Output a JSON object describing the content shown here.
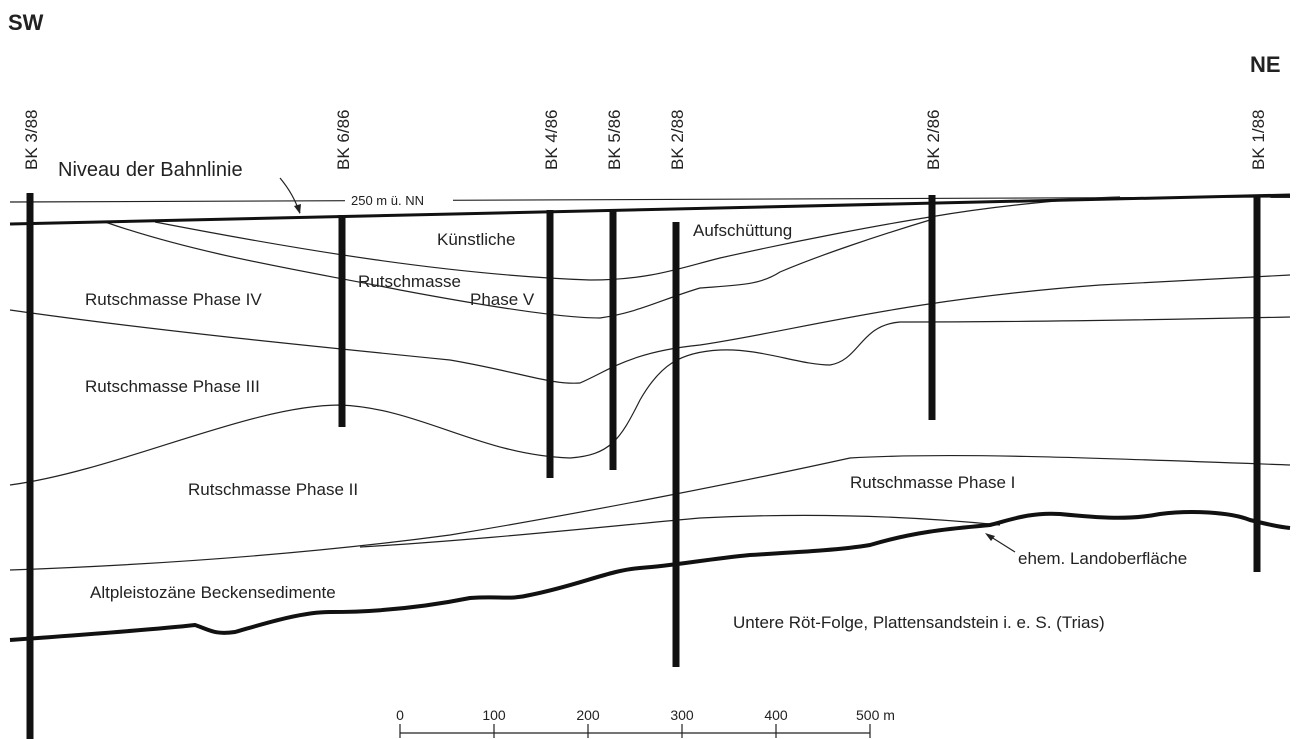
{
  "direction": {
    "left": "SW",
    "right": "NE"
  },
  "boreholes": [
    {
      "label": "BK 3/88"
    },
    {
      "label": "BK 6/86"
    },
    {
      "label": "BK 4/86"
    },
    {
      "label": "BK 5/86"
    },
    {
      "label": "BK 2/88"
    },
    {
      "label": "BK 2/86"
    },
    {
      "label": "BK 1/88"
    }
  ],
  "annotations": {
    "rail_level": "Niveau der Bahnlinie",
    "elevation": "250 m ü. NN",
    "land_surface": "ehem. Landoberfläche"
  },
  "layers": {
    "fill_1": "Künstliche",
    "fill_2": "Aufschüttung",
    "phase_v_1": "Rutschmasse",
    "phase_v_2": "Phase V",
    "phase_iv": "Rutschmasse Phase IV",
    "phase_iii": "Rutschmasse Phase III",
    "phase_ii": "Rutschmasse Phase II",
    "phase_i": "Rutschmasse Phase I",
    "basin": "Altpleistozäne Beckensedimente",
    "bedrock": "Untere Röt-Folge, Plattensandstein i. e. S. (Trias)"
  },
  "scale": {
    "ticks": [
      "0",
      "100",
      "200",
      "300",
      "400",
      "500 m"
    ]
  }
}
